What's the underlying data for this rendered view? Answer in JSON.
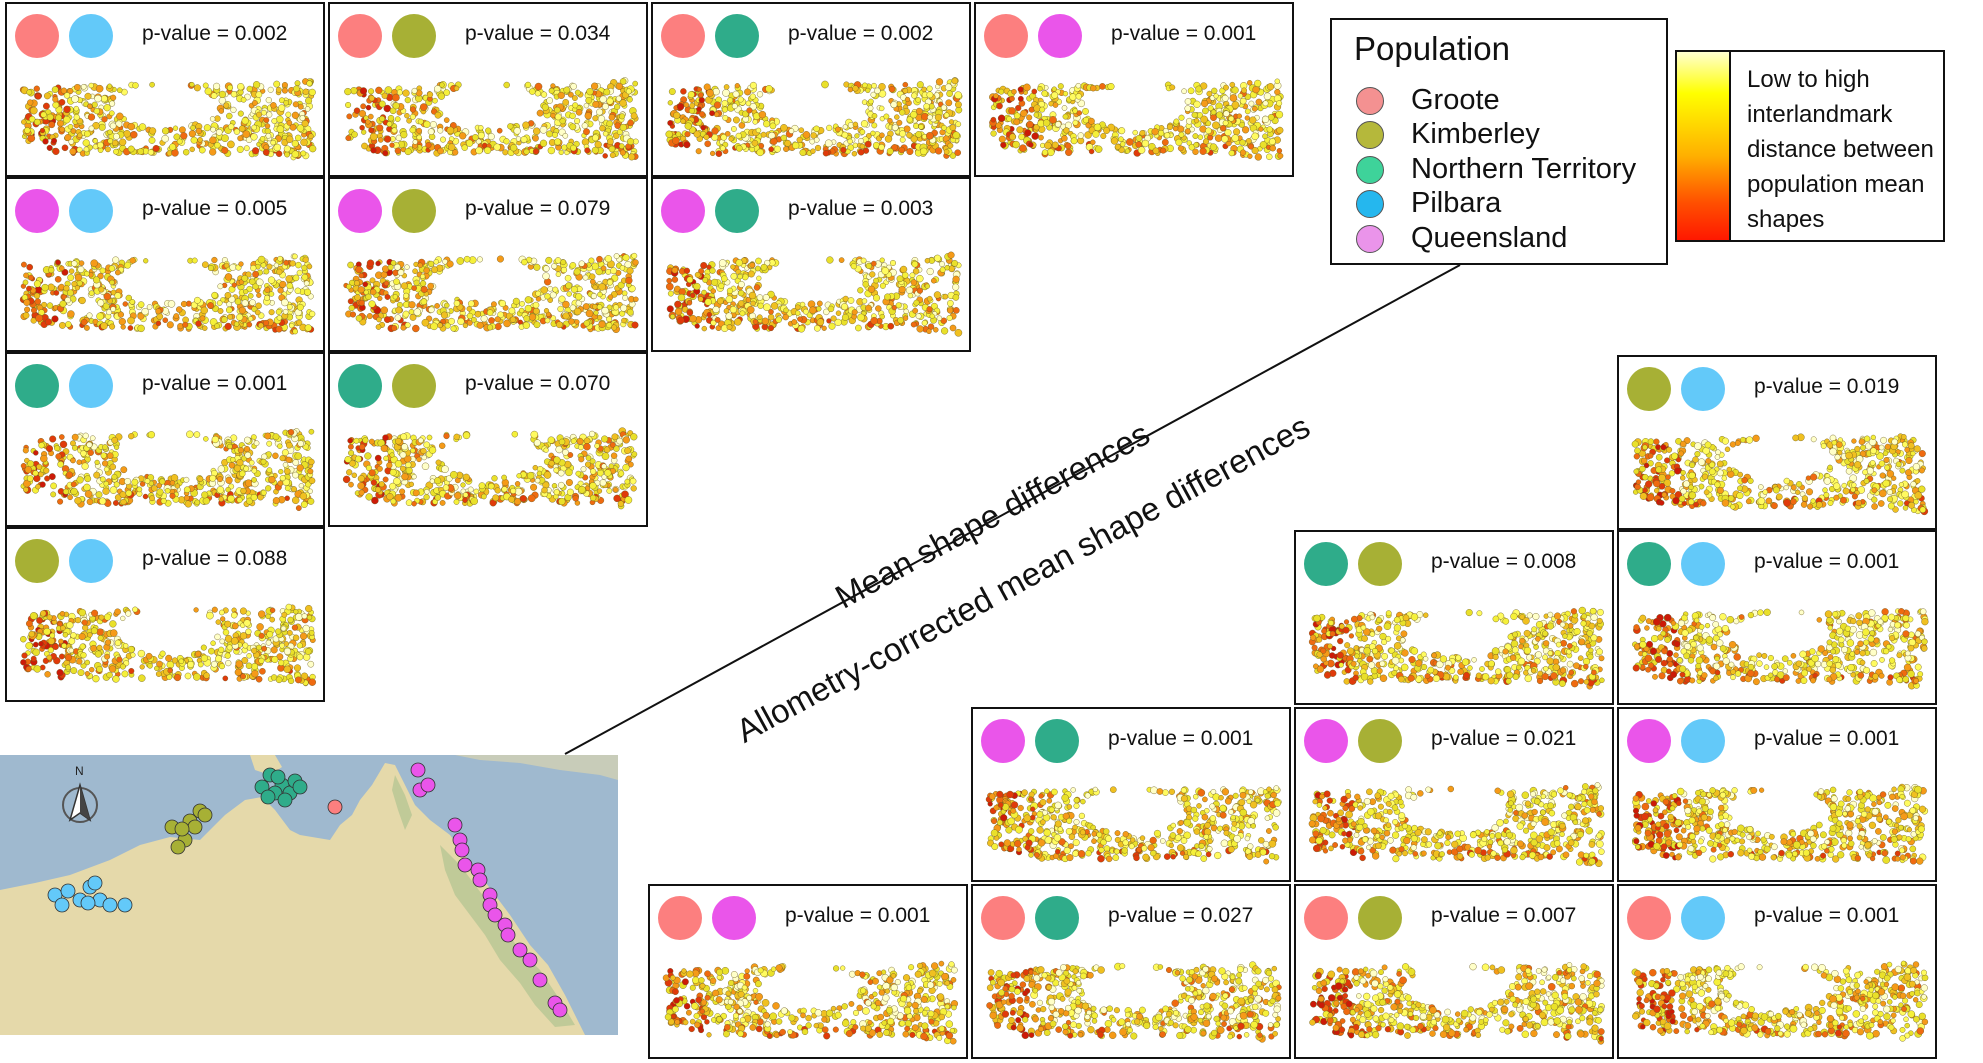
{
  "colors": {
    "groote": "#fc7f7f",
    "kimberley": "#a7b035",
    "northern_territory": "#2fac8a",
    "pilbara": "#63c9f9",
    "queensland": "#ea55ea",
    "ocean": "#9eb8ce",
    "land": "#e2d7a8"
  },
  "legend": {
    "title": "Population",
    "items": [
      {
        "label": "Groote",
        "color": "#f49191"
      },
      {
        "label": "Kimberley",
        "color": "#b5b83b"
      },
      {
        "label": "Northern Territory",
        "color": "#3ed39a"
      },
      {
        "label": "Pilbara",
        "color": "#25b7ee"
      },
      {
        "label": "Queensland",
        "color": "#ea94ea"
      }
    ]
  },
  "colorbar": {
    "text": "Low to high interlandmark distance between population mean shapes"
  },
  "labels": {
    "mean": "Mean shape differences",
    "allometry": "Allometry-corrected mean shape differences"
  },
  "map": {
    "north": "N"
  },
  "mean_shape_panels": [
    {
      "pops": [
        "groote",
        "pilbara"
      ],
      "pvalue": "p-value = 0.002"
    },
    {
      "pops": [
        "groote",
        "kimberley"
      ],
      "pvalue": "p-value = 0.034"
    },
    {
      "pops": [
        "groote",
        "northern_territory"
      ],
      "pvalue": "p-value = 0.002"
    },
    {
      "pops": [
        "groote",
        "queensland"
      ],
      "pvalue": "p-value = 0.001"
    },
    {
      "pops": [
        "queensland",
        "pilbara"
      ],
      "pvalue": "p-value = 0.005"
    },
    {
      "pops": [
        "queensland",
        "kimberley"
      ],
      "pvalue": "p-value = 0.079"
    },
    {
      "pops": [
        "queensland",
        "northern_territory"
      ],
      "pvalue": "p-value = 0.003"
    },
    {
      "pops": [
        "northern_territory",
        "pilbara"
      ],
      "pvalue": "p-value = 0.001"
    },
    {
      "pops": [
        "northern_territory",
        "kimberley"
      ],
      "pvalue": "p-value = 0.070"
    },
    {
      "pops": [
        "kimberley",
        "pilbara"
      ],
      "pvalue": "p-value = 0.088"
    }
  ],
  "allometry_panels": [
    {
      "pops": [
        "kimberley",
        "pilbara"
      ],
      "pvalue": "p-value = 0.019"
    },
    {
      "pops": [
        "northern_territory",
        "kimberley"
      ],
      "pvalue": "p-value = 0.008"
    },
    {
      "pops": [
        "northern_territory",
        "pilbara"
      ],
      "pvalue": "p-value = 0.001"
    },
    {
      "pops": [
        "queensland",
        "northern_territory"
      ],
      "pvalue": "p-value = 0.001"
    },
    {
      "pops": [
        "queensland",
        "kimberley"
      ],
      "pvalue": "p-value = 0.021"
    },
    {
      "pops": [
        "queensland",
        "pilbara"
      ],
      "pvalue": "p-value = 0.001"
    },
    {
      "pops": [
        "groote",
        "queensland"
      ],
      "pvalue": "p-value = 0.001"
    },
    {
      "pops": [
        "groote",
        "northern_territory"
      ],
      "pvalue": "p-value = 0.027"
    },
    {
      "pops": [
        "groote",
        "kimberley"
      ],
      "pvalue": "p-value = 0.007"
    },
    {
      "pops": [
        "groote",
        "pilbara"
      ],
      "pvalue": "p-value = 0.001"
    }
  ]
}
